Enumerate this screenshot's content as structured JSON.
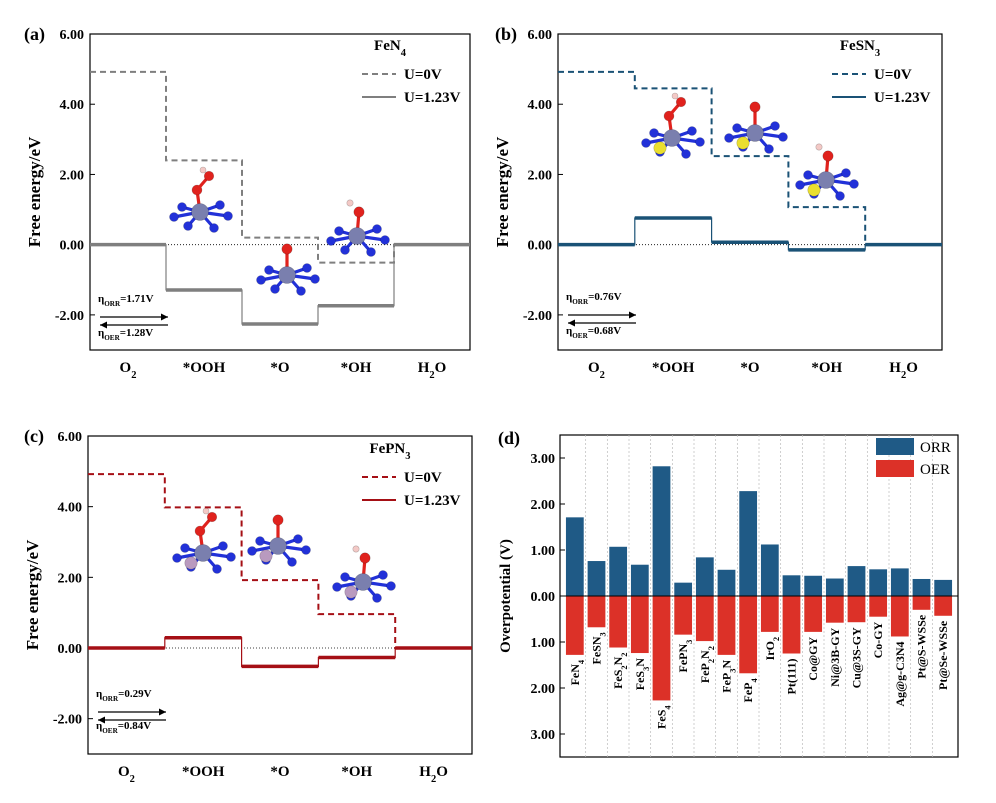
{
  "figure": {
    "energy_ylabel": "Free energy/eV",
    "overpotential_ylabel": "Overpotential (V)",
    "legend_u0": "U=0V",
    "legend_u123": "U=1.23V",
    "colors": {
      "feN4": "#7f7f7f",
      "feSN3": "#1a5276",
      "fePN3": "#a50f15",
      "orr": "#1f5a86",
      "oer": "#dc3128"
    }
  },
  "chart_data": [
    {
      "panel": "(a)",
      "type": "line",
      "catalyst": "FeN",
      "catalyst_sub": "4",
      "categories": [
        "O",
        "*OOH",
        "*O",
        "*OH",
        "H"
      ],
      "category_subs": [
        "2",
        "",
        "",
        "",
        "2"
      ],
      "category_tails": [
        "",
        "",
        "",
        "",
        "O"
      ],
      "series": [
        {
          "name": "U=0V",
          "values": [
            4.92,
            2.4,
            0.2,
            -0.51,
            0.0
          ]
        },
        {
          "name": "U=1.23V",
          "values": [
            0.0,
            -1.29,
            -2.26,
            -1.74,
            0.0
          ]
        }
      ],
      "yticks": [
        "6.00",
        "4.00",
        "2.00",
        "0.00",
        "-2.00"
      ],
      "ylim": [
        -3.0,
        6.0
      ],
      "annotations": {
        "orr_label": "η",
        "orr_sub": "ORR",
        "orr_value": "=1.71V",
        "oer_label": "η",
        "oer_sub": "OER",
        "oer_value": "=1.28V"
      }
    },
    {
      "panel": "(b)",
      "type": "line",
      "catalyst": "FeSN",
      "catalyst_sub": "3",
      "categories": [
        "O",
        "*OOH",
        "*O",
        "*OH",
        "H"
      ],
      "category_subs": [
        "2",
        "",
        "",
        "",
        "2"
      ],
      "category_tails": [
        "",
        "",
        "",
        "",
        "O"
      ],
      "series": [
        {
          "name": "U=0V",
          "values": [
            4.92,
            4.45,
            2.52,
            1.07,
            0.0
          ]
        },
        {
          "name": "U=1.23V",
          "values": [
            0.0,
            0.76,
            0.07,
            -0.15,
            0.0
          ]
        }
      ],
      "yticks": [
        "6.00",
        "4.00",
        "2.00",
        "0.00",
        "-2.00"
      ],
      "ylim": [
        -3.0,
        6.0
      ],
      "annotations": {
        "orr_label": "η",
        "orr_sub": "ORR",
        "orr_value": "=0.76V",
        "oer_label": "η",
        "oer_sub": "OER",
        "oer_value": "=0.68V"
      }
    },
    {
      "panel": "(c)",
      "type": "line",
      "catalyst": "FePN",
      "catalyst_sub": "3",
      "categories": [
        "O",
        "*OOH",
        "*O",
        "*OH",
        "H"
      ],
      "category_subs": [
        "2",
        "",
        "",
        "",
        "2"
      ],
      "category_tails": [
        "",
        "",
        "",
        "",
        "O"
      ],
      "series": [
        {
          "name": "U=0V",
          "values": [
            4.92,
            3.98,
            1.92,
            0.96,
            0.0
          ]
        },
        {
          "name": "U=1.23V",
          "values": [
            0.0,
            0.29,
            -0.52,
            -0.27,
            0.0
          ]
        }
      ],
      "yticks": [
        "6.00",
        "4.00",
        "2.00",
        "0.00",
        "-2.00"
      ],
      "ylim": [
        -3.0,
        6.0
      ],
      "annotations": {
        "orr_label": "η",
        "orr_sub": "ORR",
        "orr_value": "=0.29V",
        "oer_label": "η",
        "oer_sub": "OER",
        "oer_value": "=0.84V"
      }
    },
    {
      "panel": "(d)",
      "type": "bar",
      "ylabel": "Overpotential (V)",
      "yticks": [
        "3.00",
        "2.00",
        "1.00",
        "0.00",
        "1.00",
        "2.00",
        "3.00"
      ],
      "ylim": [
        -3.5,
        3.5
      ],
      "legend": [
        "ORR",
        "OER"
      ],
      "categories": [
        {
          "base": "FeN",
          "sub": "4",
          "tail": ""
        },
        {
          "base": "FeSN",
          "sub": "3",
          "tail": ""
        },
        {
          "base": "FeS",
          "sub": "2",
          "tail": "N",
          "sub2": "2"
        },
        {
          "base": "FeS",
          "sub": "3",
          "tail": "N"
        },
        {
          "base": "FeS",
          "sub": "4",
          "tail": ""
        },
        {
          "base": "FePN",
          "sub": "3",
          "tail": ""
        },
        {
          "base": "FeP",
          "sub": "2",
          "tail": "N",
          "sub2": "2"
        },
        {
          "base": "FeP",
          "sub": "3",
          "tail": "N"
        },
        {
          "base": "FeP",
          "sub": "4",
          "tail": ""
        },
        {
          "base": "IrO",
          "sub": "2",
          "tail": ""
        },
        {
          "base": "Pt(111)",
          "sub": "",
          "tail": ""
        },
        {
          "base": "Co@GY",
          "sub": "",
          "tail": ""
        },
        {
          "base": "Ni@3B-GY",
          "sub": "",
          "tail": ""
        },
        {
          "base": "Cu@3S-GY",
          "sub": "",
          "tail": ""
        },
        {
          "base": "Co-GY",
          "sub": "",
          "tail": ""
        },
        {
          "base": "Ag@g-C3N4",
          "sub": "",
          "tail": ""
        },
        {
          "base": "Pt@S-WSSe",
          "sub": "",
          "tail": ""
        },
        {
          "base": "Pt@Se-WSSe",
          "sub": "",
          "tail": ""
        }
      ],
      "series": [
        {
          "name": "ORR",
          "values": [
            1.71,
            0.76,
            1.07,
            0.68,
            2.82,
            0.29,
            0.84,
            0.57,
            2.28,
            1.12,
            0.45,
            0.44,
            0.38,
            0.65,
            0.58,
            0.6,
            0.37,
            0.35
          ]
        },
        {
          "name": "OER",
          "values": [
            1.28,
            0.68,
            1.12,
            1.24,
            2.27,
            0.84,
            0.98,
            1.28,
            1.68,
            0.78,
            1.25,
            0.78,
            0.58,
            0.57,
            0.45,
            0.88,
            0.3,
            0.43
          ]
        }
      ]
    }
  ]
}
